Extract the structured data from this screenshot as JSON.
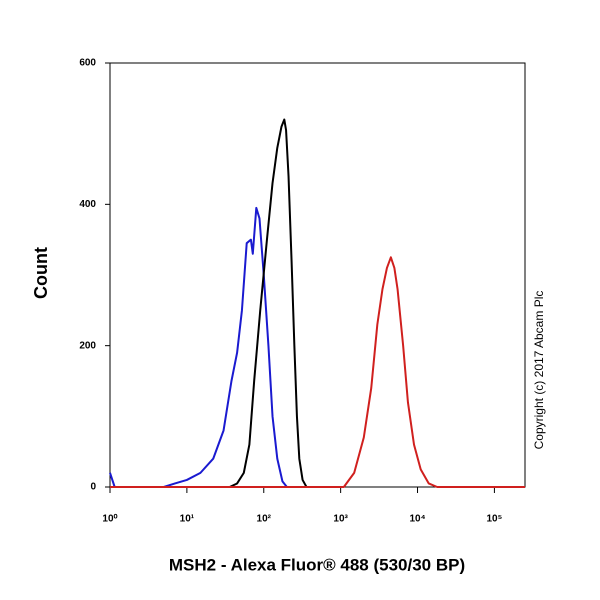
{
  "chart_data": {
    "type": "line",
    "xlabel": "MSH2 - Alexa Fluor® 488 (530/30 BP)",
    "ylabel": "Count",
    "annotation": "Copyright (c) 2017 Abcam Plc",
    "xscale": "log",
    "xlim": [
      1,
      250000
    ],
    "ylim": [
      0,
      600
    ],
    "xticks": [
      {
        "value": 1,
        "label": "10⁰"
      },
      {
        "value": 10,
        "label": "10¹"
      },
      {
        "value": 100,
        "label": "10²"
      },
      {
        "value": 1000,
        "label": "10³"
      },
      {
        "value": 10000,
        "label": "10⁴"
      },
      {
        "value": 100000,
        "label": "10⁵"
      }
    ],
    "yticks": [
      0,
      200,
      400,
      600
    ],
    "series": [
      {
        "color": "#1a1ad0",
        "x": [
          1,
          1.15,
          5,
          7,
          10,
          15,
          22,
          30,
          38,
          45,
          52,
          60,
          68,
          72,
          80,
          88,
          100,
          115,
          130,
          150,
          175,
          200
        ],
        "values": [
          20,
          0,
          0,
          5,
          10,
          20,
          40,
          80,
          150,
          190,
          250,
          345,
          350,
          330,
          395,
          380,
          300,
          200,
          100,
          40,
          8,
          0
        ]
      },
      {
        "color": "#000000",
        "x": [
          1,
          36,
          45,
          55,
          65,
          75,
          90,
          110,
          130,
          150,
          170,
          185,
          195,
          210,
          230,
          250,
          270,
          290,
          320,
          360
        ],
        "values": [
          0,
          0,
          5,
          20,
          60,
          150,
          250,
          350,
          430,
          480,
          510,
          520,
          505,
          440,
          320,
          200,
          100,
          40,
          10,
          0
        ]
      },
      {
        "color": "#d0201e",
        "x": [
          1,
          1100,
          1500,
          2000,
          2500,
          3000,
          3500,
          4000,
          4500,
          5000,
          5500,
          6500,
          7500,
          9000,
          11000,
          14000,
          18000,
          250000
        ],
        "values": [
          0,
          0,
          20,
          70,
          140,
          230,
          280,
          310,
          325,
          310,
          280,
          200,
          120,
          60,
          25,
          5,
          0,
          0
        ]
      }
    ]
  }
}
